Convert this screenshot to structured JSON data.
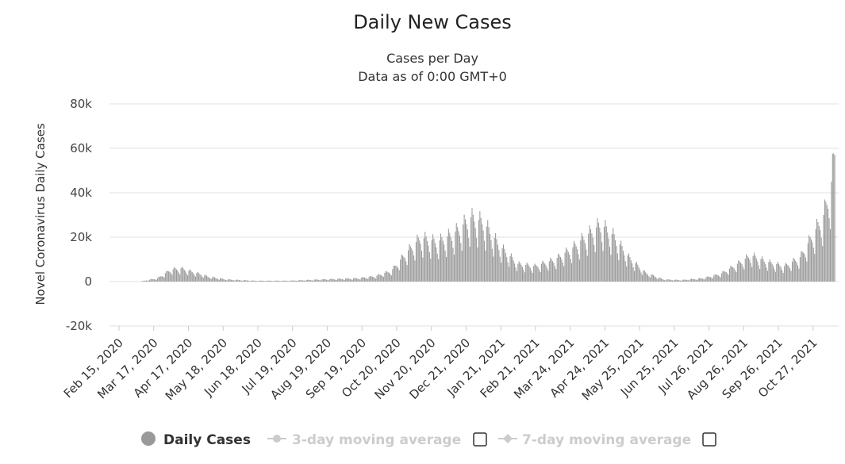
{
  "colors": {
    "bar": "#999999",
    "bar_stroke": "#8a8a8a",
    "grid": "#e0e0e0",
    "legend_active": "#333333",
    "legend_inactive": "#cccccc",
    "legend_marker": "#999999"
  },
  "chart_data": {
    "type": "bar",
    "title": "Daily New Cases",
    "subtitle_lines": [
      "Cases per Day",
      "Data as of 0:00 GMT+0"
    ],
    "ylabel": "Novel Coronavirus Daily Cases",
    "xlabel": "",
    "ylim": [
      -20000,
      80000
    ],
    "yticks": [
      {
        "value": 80000,
        "label": "80k"
      },
      {
        "value": 60000,
        "label": "60k"
      },
      {
        "value": 40000,
        "label": "40k"
      },
      {
        "value": 20000,
        "label": "20k"
      },
      {
        "value": 0,
        "label": "0"
      },
      {
        "value": -20000,
        "label": "-20k"
      }
    ],
    "x_start": "Feb 15, 2020",
    "x_end": "Nov 15, 2021",
    "x_tick_labels": [
      "Feb 15, 2020",
      "Mar 17, 2020",
      "Apr 17, 2020",
      "May 18, 2020",
      "Jun 18, 2020",
      "Jul 19, 2020",
      "Aug 19, 2020",
      "Sep 19, 2020",
      "Oct 20, 2020",
      "Nov 20, 2020",
      "Dec 21, 2020",
      "Jan 21, 2021",
      "Feb 21, 2021",
      "Mar 24, 2021",
      "Apr 24, 2021",
      "May 25, 2021",
      "Jun 25, 2021",
      "Jul 26, 2021",
      "Aug 26, 2021",
      "Sep 26, 2021",
      "Oct 27, 2021"
    ],
    "grid": true,
    "legend_position": "bottom",
    "series": [
      {
        "name": "Daily Cases",
        "value_keypoints": [
          {
            "date": "Feb 15, 2020",
            "value": 0
          },
          {
            "date": "Mar 05, 2020",
            "value": 100
          },
          {
            "date": "Mar 20, 2020",
            "value": 1500
          },
          {
            "date": "Apr 01, 2020",
            "value": 5500
          },
          {
            "date": "Apr 10, 2020",
            "value": 6000
          },
          {
            "date": "Apr 20, 2020",
            "value": 4500
          },
          {
            "date": "May 05, 2020",
            "value": 2200
          },
          {
            "date": "May 20, 2020",
            "value": 1000
          },
          {
            "date": "Jun 15, 2020",
            "value": 400
          },
          {
            "date": "Jul 15, 2020",
            "value": 400
          },
          {
            "date": "Aug 15, 2020",
            "value": 1000
          },
          {
            "date": "Sep 15, 2020",
            "value": 1500
          },
          {
            "date": "Oct 01, 2020",
            "value": 2500
          },
          {
            "date": "Oct 15, 2020",
            "value": 5000
          },
          {
            "date": "Oct 28, 2020",
            "value": 13000
          },
          {
            "date": "Nov 10, 2020",
            "value": 20000
          },
          {
            "date": "Nov 25, 2020",
            "value": 18000
          },
          {
            "date": "Dec 10, 2020",
            "value": 22000
          },
          {
            "date": "Dec 25, 2020",
            "value": 29000
          },
          {
            "date": "Jan 05, 2021",
            "value": 27000
          },
          {
            "date": "Jan 20, 2021",
            "value": 16000
          },
          {
            "date": "Feb 05, 2021",
            "value": 8000
          },
          {
            "date": "Feb 20, 2021",
            "value": 7000
          },
          {
            "date": "Mar 10, 2021",
            "value": 10000
          },
          {
            "date": "Mar 25, 2021",
            "value": 15000
          },
          {
            "date": "Apr 10, 2021",
            "value": 22000
          },
          {
            "date": "Apr 20, 2021",
            "value": 26000
          },
          {
            "date": "May 01, 2021",
            "value": 21000
          },
          {
            "date": "May 15, 2021",
            "value": 11000
          },
          {
            "date": "May 30, 2021",
            "value": 4000
          },
          {
            "date": "Jun 15, 2021",
            "value": 1000
          },
          {
            "date": "Jul 01, 2021",
            "value": 700
          },
          {
            "date": "Jul 20, 2021",
            "value": 1500
          },
          {
            "date": "Aug 05, 2021",
            "value": 3500
          },
          {
            "date": "Aug 20, 2021",
            "value": 8000
          },
          {
            "date": "Sep 01, 2021",
            "value": 12000
          },
          {
            "date": "Sep 15, 2021",
            "value": 9000
          },
          {
            "date": "Oct 01, 2021",
            "value": 7000
          },
          {
            "date": "Oct 15, 2021",
            "value": 11000
          },
          {
            "date": "Oct 25, 2021",
            "value": 20000
          },
          {
            "date": "Nov 05, 2021",
            "value": 30000
          },
          {
            "date": "Nov 12, 2021",
            "value": 45000
          },
          {
            "date": "Nov 15, 2021",
            "value": 60000
          }
        ]
      }
    ],
    "legend": [
      {
        "label": "Daily Cases",
        "active": true,
        "marker": "circle"
      },
      {
        "label": "3-day moving average",
        "active": false,
        "marker": "line-circle"
      },
      {
        "label": "7-day moving average",
        "active": false,
        "marker": "line-diamond"
      }
    ]
  }
}
